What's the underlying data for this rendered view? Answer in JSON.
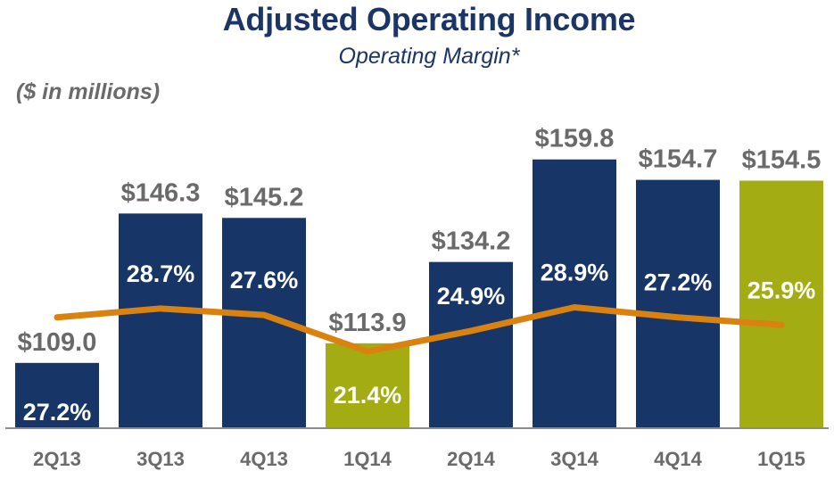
{
  "header": {
    "title": "Adjusted Operating Income",
    "subtitle": "Operating Margin*",
    "units": "($ in millions)"
  },
  "colors": {
    "title": "#1a3566",
    "bar_primary": "#173566",
    "bar_highlight": "#a3ad13",
    "line": "#d9820f",
    "value_label": "#6a6a6a",
    "margin_label": "#ffffff",
    "axis": "#8a8a8a",
    "category_label": "#6a6a6a"
  },
  "chart_data": {
    "type": "bar",
    "categories": [
      "2Q13",
      "3Q13",
      "4Q13",
      "1Q14",
      "2Q14",
      "3Q14",
      "4Q14",
      "1Q15"
    ],
    "series": [
      {
        "values": [
          109.0,
          146.3,
          145.2,
          113.9,
          134.2,
          159.8,
          154.7,
          154.5
        ],
        "value_labels": [
          "$109.0",
          "$146.3",
          "$145.2",
          "$113.9",
          "$134.2",
          "$159.8",
          "$154.7",
          "$154.5"
        ],
        "highlight": [
          false,
          false,
          false,
          true,
          false,
          false,
          false,
          true
        ]
      },
      {
        "type": "line",
        "values": [
          27.2,
          28.7,
          27.6,
          21.4,
          24.9,
          28.9,
          27.2,
          25.9
        ],
        "value_labels": [
          "27.2%",
          "28.7%",
          "27.6%",
          "21.4%",
          "24.9%",
          "28.9%",
          "27.2%",
          "25.9%"
        ]
      }
    ],
    "xlabel": "",
    "ylabel": "",
    "grid": false,
    "legend": "none"
  }
}
